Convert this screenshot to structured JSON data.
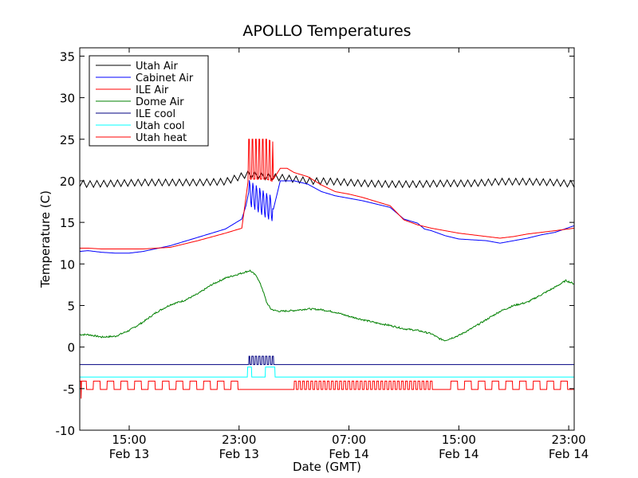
{
  "chart_data": {
    "type": "line",
    "title": "APOLLO Temperatures",
    "xlabel": "Date (GMT)",
    "ylabel": "Temperature (C)",
    "x_unit": "hours since Feb 13 00:00 GMT",
    "xlim": [
      11.4,
      47.4
    ],
    "ylim": [
      -10,
      36
    ],
    "grid": false,
    "legend_position": "top-left",
    "yticks": [
      {
        "value": -10,
        "label": "-10"
      },
      {
        "value": -5,
        "label": "-5"
      },
      {
        "value": 0,
        "label": "0"
      },
      {
        "value": 5,
        "label": "5"
      },
      {
        "value": 10,
        "label": "10"
      },
      {
        "value": 15,
        "label": "15"
      },
      {
        "value": 20,
        "label": "20"
      },
      {
        "value": 25,
        "label": "25"
      },
      {
        "value": 30,
        "label": "30"
      },
      {
        "value": 35,
        "label": "35"
      }
    ],
    "xticks": [
      {
        "value": 15,
        "time": "15:00",
        "date": "Feb 13"
      },
      {
        "value": 23,
        "time": "23:00",
        "date": "Feb 13"
      },
      {
        "value": 31,
        "time": "07:00",
        "date": "Feb 14"
      },
      {
        "value": 39,
        "time": "15:00",
        "date": "Feb 14"
      },
      {
        "value": 47,
        "time": "23:00",
        "date": "Feb 14"
      }
    ],
    "series": [
      {
        "name": "Utah Air",
        "color": "#000000",
        "kind": "line",
        "oscillation": 0.8,
        "period": 0.5,
        "points": [
          [
            11.4,
            19.7
          ],
          [
            12,
            19.6
          ],
          [
            14,
            19.7
          ],
          [
            16,
            19.8
          ],
          [
            18,
            19.8
          ],
          [
            20,
            19.8
          ],
          [
            22,
            19.9
          ],
          [
            23.6,
            20.8
          ],
          [
            24.5,
            20.6
          ],
          [
            25,
            20.5
          ],
          [
            26,
            20.4
          ],
          [
            28,
            20.0
          ],
          [
            30,
            19.9
          ],
          [
            32,
            19.7
          ],
          [
            34,
            19.6
          ],
          [
            36,
            19.6
          ],
          [
            38,
            19.7
          ],
          [
            40,
            19.7
          ],
          [
            42,
            19.9
          ],
          [
            44,
            19.9
          ],
          [
            46,
            19.8
          ],
          [
            47.4,
            19.6
          ]
        ]
      },
      {
        "name": "Cabinet Air",
        "color": "#0000ff",
        "kind": "line",
        "points": [
          [
            11.4,
            11.5
          ],
          [
            12,
            11.6
          ],
          [
            13,
            11.4
          ],
          [
            14,
            11.3
          ],
          [
            15,
            11.3
          ],
          [
            16,
            11.5
          ],
          [
            18,
            12.2
          ],
          [
            20,
            13.2
          ],
          [
            22,
            14.2
          ],
          [
            23.2,
            15.4
          ],
          [
            23.5,
            17.0
          ],
          [
            23.7,
            18.6
          ],
          [
            25.0,
            17.0
          ],
          [
            25.5,
            16.6
          ],
          [
            26,
            20.0
          ],
          [
            27,
            20.0
          ],
          [
            28,
            19.6
          ],
          [
            29,
            18.7
          ],
          [
            30,
            18.2
          ],
          [
            31,
            17.9
          ],
          [
            32,
            17.6
          ],
          [
            33,
            17.2
          ],
          [
            34,
            16.8
          ],
          [
            35,
            15.4
          ],
          [
            36,
            14.9
          ],
          [
            36.5,
            14.2
          ],
          [
            37,
            14.0
          ],
          [
            38,
            13.4
          ],
          [
            39,
            13.0
          ],
          [
            40,
            12.9
          ],
          [
            41,
            12.8
          ],
          [
            42,
            12.5
          ],
          [
            43,
            12.8
          ],
          [
            44,
            13.1
          ],
          [
            45,
            13.5
          ],
          [
            46,
            13.8
          ],
          [
            47.4,
            14.6
          ]
        ]
      },
      {
        "name": "ILE Air",
        "color": "#ff0000",
        "kind": "line",
        "points": [
          [
            11.4,
            11.9
          ],
          [
            12,
            11.9
          ],
          [
            13,
            11.8
          ],
          [
            14,
            11.8
          ],
          [
            16,
            11.8
          ],
          [
            18,
            12.0
          ],
          [
            20,
            12.8
          ],
          [
            22,
            13.7
          ],
          [
            23.2,
            14.3
          ],
          [
            23.5,
            18.0
          ],
          [
            23.7,
            20.5
          ],
          [
            25.0,
            20.5
          ],
          [
            25.5,
            20.2
          ],
          [
            26,
            21.5
          ],
          [
            26.5,
            21.5
          ],
          [
            27,
            21.0
          ],
          [
            28,
            20.5
          ],
          [
            29,
            19.5
          ],
          [
            30,
            18.7
          ],
          [
            31,
            18.4
          ],
          [
            32,
            18.0
          ],
          [
            33,
            17.5
          ],
          [
            34,
            17.0
          ],
          [
            35,
            15.3
          ],
          [
            36,
            14.7
          ],
          [
            37,
            14.3
          ],
          [
            38,
            14.0
          ],
          [
            39,
            13.7
          ],
          [
            40,
            13.5
          ],
          [
            41,
            13.3
          ],
          [
            42,
            13.1
          ],
          [
            43,
            13.3
          ],
          [
            44,
            13.6
          ],
          [
            45,
            13.8
          ],
          [
            46,
            14.0
          ],
          [
            47.4,
            14.3
          ]
        ]
      },
      {
        "name": "Dome Air",
        "color": "#008000",
        "kind": "line",
        "noise": 0.2,
        "points": [
          [
            11.4,
            1.5
          ],
          [
            12,
            1.5
          ],
          [
            13,
            1.2
          ],
          [
            14,
            1.3
          ],
          [
            15,
            2.0
          ],
          [
            16,
            3.0
          ],
          [
            17,
            4.2
          ],
          [
            18,
            5.1
          ],
          [
            19,
            5.6
          ],
          [
            20,
            6.4
          ],
          [
            21,
            7.5
          ],
          [
            22,
            8.3
          ],
          [
            23,
            8.8
          ],
          [
            23.8,
            9.2
          ],
          [
            24.3,
            8.5
          ],
          [
            24.7,
            7.0
          ],
          [
            25.0,
            5.4
          ],
          [
            25.3,
            4.6
          ],
          [
            25.6,
            4.4
          ],
          [
            26,
            4.3
          ],
          [
            27,
            4.4
          ],
          [
            28,
            4.6
          ],
          [
            29,
            4.5
          ],
          [
            30,
            4.2
          ],
          [
            31,
            3.7
          ],
          [
            32,
            3.3
          ],
          [
            33,
            2.9
          ],
          [
            34,
            2.6
          ],
          [
            35,
            2.2
          ],
          [
            36,
            2.0
          ],
          [
            37,
            1.6
          ],
          [
            37.6,
            1.0
          ],
          [
            38,
            0.8
          ],
          [
            39,
            1.4
          ],
          [
            40,
            2.3
          ],
          [
            41,
            3.3
          ],
          [
            42,
            4.3
          ],
          [
            43,
            5.0
          ],
          [
            44,
            5.4
          ],
          [
            45,
            6.3
          ],
          [
            46,
            7.2
          ],
          [
            46.8,
            8.0
          ],
          [
            47.4,
            7.6
          ]
        ]
      },
      {
        "name": "ILE cool",
        "color": "#000080",
        "kind": "duty",
        "low": -2.1,
        "high": -1.1,
        "on_windows": [
          [
            23.7,
            25.5
          ]
        ],
        "pulse_period": 0.25,
        "duty": 0.55
      },
      {
        "name": "Utah cool",
        "color": "#00ffff",
        "kind": "duty",
        "low": -3.6,
        "high": -2.4,
        "on_windows": [
          [
            23.6,
            23.9
          ],
          [
            24.9,
            25.6
          ]
        ],
        "pulse_period": 1.0,
        "duty": 1.0
      },
      {
        "name": "Utah heat",
        "color": "#ff0000",
        "kind": "duty",
        "low": -5.1,
        "high": -4.1,
        "on_windows": [
          [
            11.4,
            23.2
          ],
          [
            27,
            37.1
          ],
          [
            38.4,
            47.4
          ]
        ],
        "pulse_period": 1.0,
        "duty": 0.5,
        "dense_windows": [
          [
            27,
            37.1
          ]
        ],
        "dense_period": 0.3,
        "spike": [
          11.5,
          -6.2
        ]
      }
    ]
  }
}
